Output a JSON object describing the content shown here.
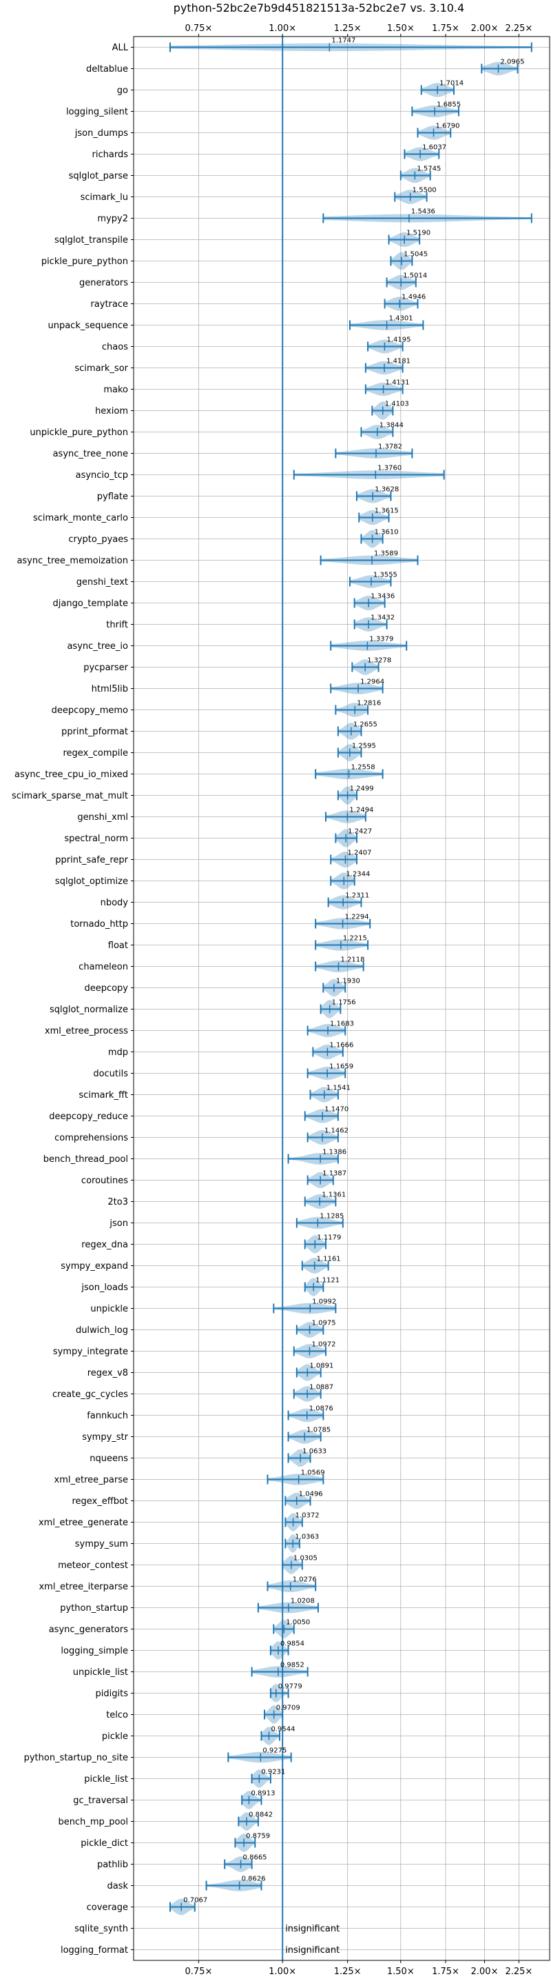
{
  "chart_data": {
    "type": "violin",
    "title": "python-52bc2e7b9d451821513a-52bc2e7 vs. 3.10.4",
    "xlabel": "",
    "ylabel": "",
    "x_scale": "log",
    "xlim": [
      0.6,
      2.5
    ],
    "x_ticks": [
      0.75,
      1.0,
      1.25,
      1.5,
      1.75,
      2.0,
      2.25
    ],
    "x_tick_labels": [
      "0.75×",
      "1.00×",
      "1.25×",
      "1.50×",
      "1.75×",
      "2.00×",
      "2.25×"
    ],
    "reference_line": 1.0,
    "grid": true,
    "colors": {
      "violin": "#1f77b4",
      "line": "#1f77b4",
      "grid": "#b0b0b0"
    },
    "categories": [
      "ALL",
      "deltablue",
      "go",
      "logging_silent",
      "json_dumps",
      "richards",
      "sqlglot_parse",
      "scimark_lu",
      "mypy2",
      "sqlglot_transpile",
      "pickle_pure_python",
      "generators",
      "raytrace",
      "unpack_sequence",
      "chaos",
      "scimark_sor",
      "mako",
      "hexiom",
      "unpickle_pure_python",
      "async_tree_none",
      "asyncio_tcp",
      "pyflate",
      "scimark_monte_carlo",
      "crypto_pyaes",
      "async_tree_memoization",
      "genshi_text",
      "django_template",
      "thrift",
      "async_tree_io",
      "pycparser",
      "html5lib",
      "deepcopy_memo",
      "pprint_pformat",
      "regex_compile",
      "async_tree_cpu_io_mixed",
      "scimark_sparse_mat_mult",
      "genshi_xml",
      "spectral_norm",
      "pprint_safe_repr",
      "sqlglot_optimize",
      "nbody",
      "tornado_http",
      "float",
      "chameleon",
      "deepcopy",
      "sqlglot_normalize",
      "xml_etree_process",
      "mdp",
      "docutils",
      "scimark_fft",
      "deepcopy_reduce",
      "comprehensions",
      "bench_thread_pool",
      "coroutines",
      "2to3",
      "json",
      "regex_dna",
      "sympy_expand",
      "json_loads",
      "unpickle",
      "dulwich_log",
      "sympy_integrate",
      "regex_v8",
      "create_gc_cycles",
      "fannkuch",
      "sympy_str",
      "nqueens",
      "xml_etree_parse",
      "regex_effbot",
      "xml_etree_generate",
      "sympy_sum",
      "meteor_contest",
      "xml_etree_iterparse",
      "python_startup",
      "async_generators",
      "logging_simple",
      "unpickle_list",
      "pidigits",
      "telco",
      "pickle",
      "python_startup_no_site",
      "pickle_list",
      "gc_traversal",
      "bench_mp_pool",
      "pickle_dict",
      "pathlib",
      "dask",
      "coverage",
      "sqlite_synth",
      "logging_format"
    ],
    "values": [
      1.1747,
      2.0965,
      1.7014,
      1.6855,
      1.679,
      1.6037,
      1.5745,
      1.55,
      1.5436,
      1.519,
      1.5045,
      1.5014,
      1.4946,
      1.4301,
      1.4195,
      1.4181,
      1.4131,
      1.4103,
      1.3844,
      1.3782,
      1.376,
      1.3628,
      1.3615,
      1.361,
      1.3589,
      1.3555,
      1.3436,
      1.3432,
      1.3379,
      1.3278,
      1.2964,
      1.2816,
      1.2655,
      1.2595,
      1.2558,
      1.2499,
      1.2494,
      1.2427,
      1.2407,
      1.2344,
      1.2311,
      1.2294,
      1.2215,
      1.2118,
      1.193,
      1.1756,
      1.1683,
      1.1666,
      1.1659,
      1.1541,
      1.147,
      1.1462,
      1.1386,
      1.1387,
      1.1361,
      1.1285,
      1.1179,
      1.1161,
      1.1121,
      1.0992,
      1.0975,
      1.0972,
      1.0891,
      1.0887,
      1.0876,
      1.0785,
      1.0633,
      1.0569,
      1.0496,
      1.0372,
      1.0363,
      1.0305,
      1.0276,
      1.0208,
      1.005,
      0.9854,
      0.9852,
      0.9779,
      0.9709,
      0.9544,
      0.9275,
      0.9231,
      0.8913,
      0.8842,
      0.8759,
      0.8665,
      0.8626,
      0.7067,
      null,
      null
    ],
    "value_labels": [
      "1.1747",
      "2.0965",
      "1.7014",
      "1.6855",
      "1.6790",
      "1.6037",
      "1.5745",
      "1.5500",
      "1.5436",
      "1.5190",
      "1.5045",
      "1.5014",
      "1.4946",
      "1.4301",
      "1.4195",
      "1.4181",
      "1.4131",
      "1.4103",
      "1.3844",
      "1.3782",
      "1.3760",
      "1.3628",
      "1.3615",
      "1.3610",
      "1.3589",
      "1.3555",
      "1.3436",
      "1.3432",
      "1.3379",
      "1.3278",
      "1.2964",
      "1.2816",
      "1.2655",
      "1.2595",
      "1.2558",
      "1.2499",
      "1.2494",
      "1.2427",
      "1.2407",
      "1.2344",
      "1.2311",
      "1.2294",
      "1.2215",
      "1.2118",
      "1.1930",
      "1.1756",
      "1.1683",
      "1.1666",
      "1.1659",
      "1.1541",
      "1.1470",
      "1.1462",
      "1.1386",
      "1.1387",
      "1.1361",
      "1.1285",
      "1.1179",
      "1.1161",
      "1.1121",
      "1.0992",
      "1.0975",
      "1.0972",
      "1.0891",
      "1.0887",
      "1.0876",
      "1.0785",
      "1.0633",
      "1.0569",
      "1.0496",
      "1.0372",
      "1.0363",
      "1.0305",
      "1.0276",
      "1.0208",
      "1.0050",
      "0.9854",
      "0.9852",
      "0.9779",
      "0.9709",
      "0.9544",
      "0.9275",
      "0.9231",
      "0.8913",
      "0.8842",
      "0.8759",
      "0.8665",
      "0.8626",
      "0.7067",
      "insignificant",
      "insignificant"
    ],
    "ranges": [
      [
        0.68,
        2.35
      ],
      [
        1.98,
        2.24
      ],
      [
        1.61,
        1.8
      ],
      [
        1.56,
        1.83
      ],
      [
        1.59,
        1.78
      ],
      [
        1.52,
        1.71
      ],
      [
        1.5,
        1.66
      ],
      [
        1.47,
        1.64
      ],
      [
        1.15,
        2.35
      ],
      [
        1.44,
        1.6
      ],
      [
        1.45,
        1.56
      ],
      [
        1.43,
        1.58
      ],
      [
        1.42,
        1.59
      ],
      [
        1.26,
        1.62
      ],
      [
        1.34,
        1.51
      ],
      [
        1.33,
        1.51
      ],
      [
        1.33,
        1.51
      ],
      [
        1.36,
        1.46
      ],
      [
        1.31,
        1.46
      ],
      [
        1.2,
        1.56
      ],
      [
        1.04,
        1.74
      ],
      [
        1.29,
        1.45
      ],
      [
        1.3,
        1.44
      ],
      [
        1.31,
        1.41
      ],
      [
        1.14,
        1.59
      ],
      [
        1.26,
        1.45
      ],
      [
        1.28,
        1.42
      ],
      [
        1.28,
        1.43
      ],
      [
        1.18,
        1.53
      ],
      [
        1.27,
        1.39
      ],
      [
        1.18,
        1.41
      ],
      [
        1.2,
        1.34
      ],
      [
        1.21,
        1.31
      ],
      [
        1.21,
        1.31
      ],
      [
        1.12,
        1.41
      ],
      [
        1.21,
        1.29
      ],
      [
        1.16,
        1.33
      ],
      [
        1.2,
        1.29
      ],
      [
        1.18,
        1.29
      ],
      [
        1.18,
        1.28
      ],
      [
        1.17,
        1.31
      ],
      [
        1.12,
        1.35
      ],
      [
        1.12,
        1.34
      ],
      [
        1.12,
        1.32
      ],
      [
        1.15,
        1.24
      ],
      [
        1.14,
        1.22
      ],
      [
        1.09,
        1.24
      ],
      [
        1.11,
        1.23
      ],
      [
        1.09,
        1.24
      ],
      [
        1.1,
        1.21
      ],
      [
        1.08,
        1.21
      ],
      [
        1.09,
        1.21
      ],
      [
        1.02,
        1.21
      ],
      [
        1.09,
        1.19
      ],
      [
        1.08,
        1.2
      ],
      [
        1.05,
        1.23
      ],
      [
        1.08,
        1.16
      ],
      [
        1.07,
        1.17
      ],
      [
        1.08,
        1.15
      ],
      [
        0.97,
        1.2
      ],
      [
        1.05,
        1.15
      ],
      [
        1.04,
        1.16
      ],
      [
        1.05,
        1.14
      ],
      [
        1.04,
        1.14
      ],
      [
        1.02,
        1.15
      ],
      [
        1.02,
        1.14
      ],
      [
        1.02,
        1.1
      ],
      [
        0.95,
        1.15
      ],
      [
        1.01,
        1.1
      ],
      [
        1.01,
        1.07
      ],
      [
        1.01,
        1.06
      ],
      [
        1.0,
        1.07
      ],
      [
        0.95,
        1.12
      ],
      [
        0.92,
        1.13
      ],
      [
        0.97,
        1.04
      ],
      [
        0.96,
        1.02
      ],
      [
        0.9,
        1.09
      ],
      [
        0.96,
        1.02
      ],
      [
        0.94,
        1.0
      ],
      [
        0.93,
        0.99
      ],
      [
        0.83,
        1.03
      ],
      [
        0.9,
        0.96
      ],
      [
        0.87,
        0.93
      ],
      [
        0.86,
        0.92
      ],
      [
        0.85,
        0.91
      ],
      [
        0.82,
        0.9
      ],
      [
        0.77,
        0.93
      ],
      [
        0.68,
        0.74
      ],
      null,
      null
    ]
  }
}
